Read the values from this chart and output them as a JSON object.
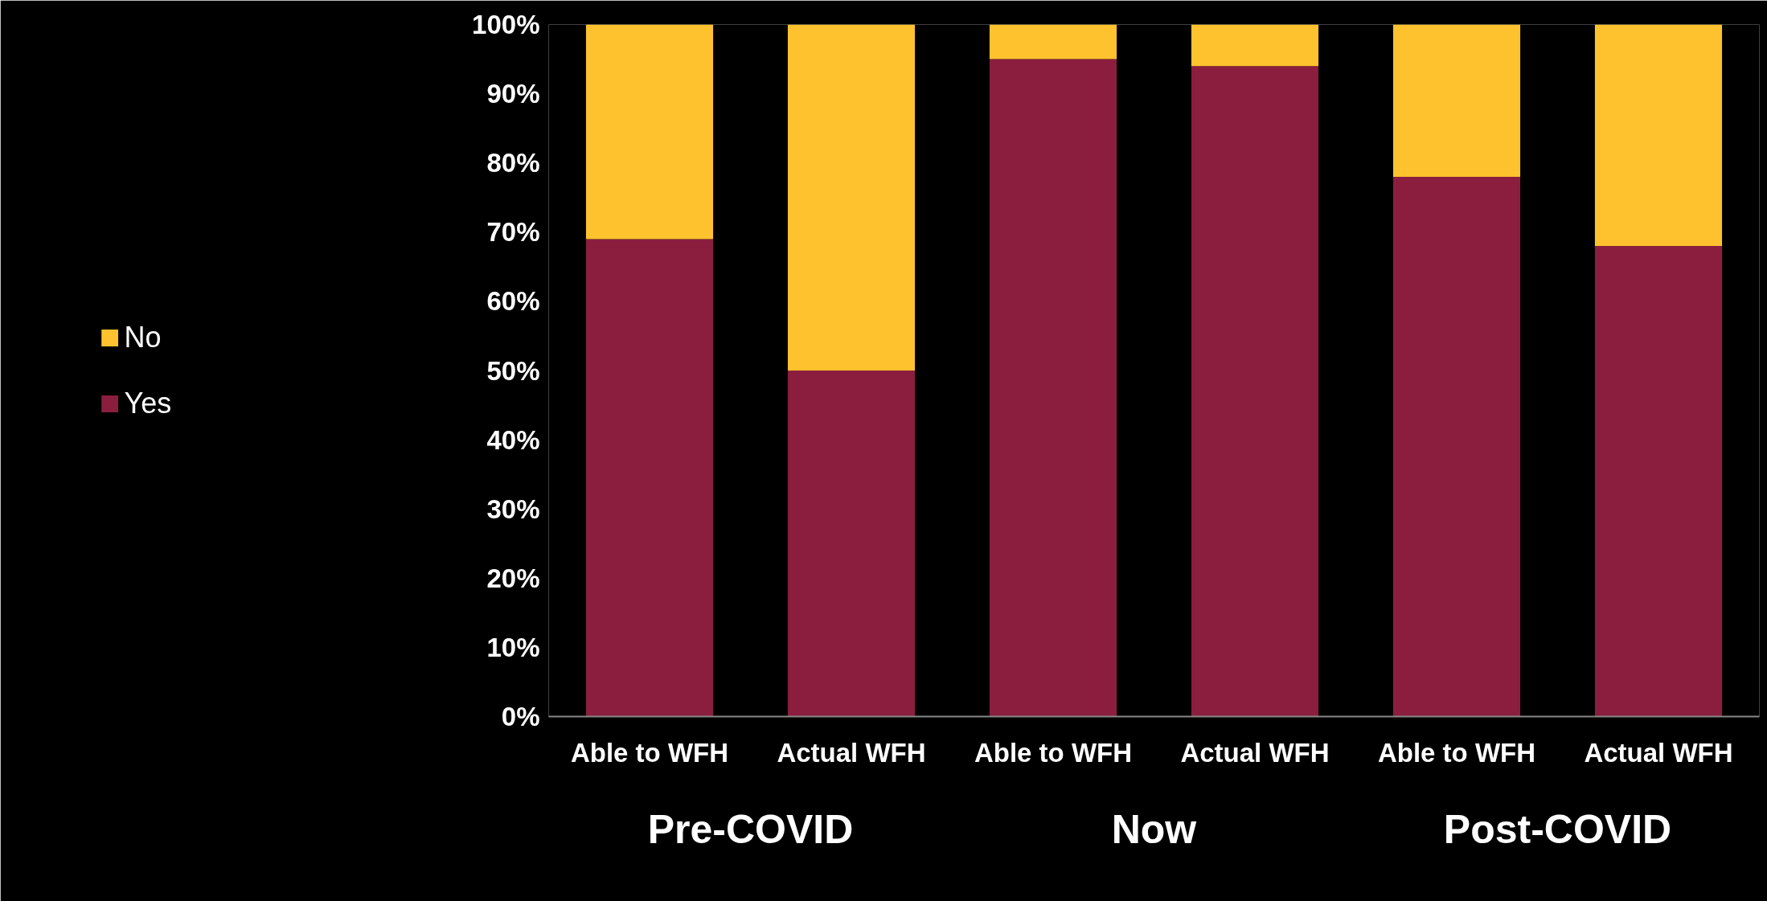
{
  "chart_data": {
    "type": "bar",
    "stacked": true,
    "categories": [
      "Able to WFH",
      "Actual WFH",
      "Able to WFH",
      "Actual WFH",
      "Able to WFH",
      "Actual WFH"
    ],
    "series": [
      {
        "name": "Yes",
        "color": "#8b1e3f",
        "values": [
          69,
          50,
          95,
          94,
          78,
          68
        ]
      },
      {
        "name": "No",
        "color": "#fdc22d",
        "values": [
          31,
          50,
          5,
          6,
          22,
          32
        ]
      }
    ],
    "ylim": [
      0,
      100
    ],
    "yticks": [
      {
        "value": 0,
        "label": "0%"
      },
      {
        "value": 10,
        "label": "10%"
      },
      {
        "value": 20,
        "label": "20%"
      },
      {
        "value": 30,
        "label": "30%"
      },
      {
        "value": 40,
        "label": "40%"
      },
      {
        "value": 50,
        "label": "50%"
      },
      {
        "value": 60,
        "label": "60%"
      },
      {
        "value": 70,
        "label": "70%"
      },
      {
        "value": 80,
        "label": "80%"
      },
      {
        "value": 90,
        "label": "90%"
      },
      {
        "value": 100,
        "label": "100%"
      }
    ],
    "annotations": [
      "Pre-COVID",
      "Now",
      "Post-COVID"
    ],
    "grid": false,
    "legend": "left"
  }
}
